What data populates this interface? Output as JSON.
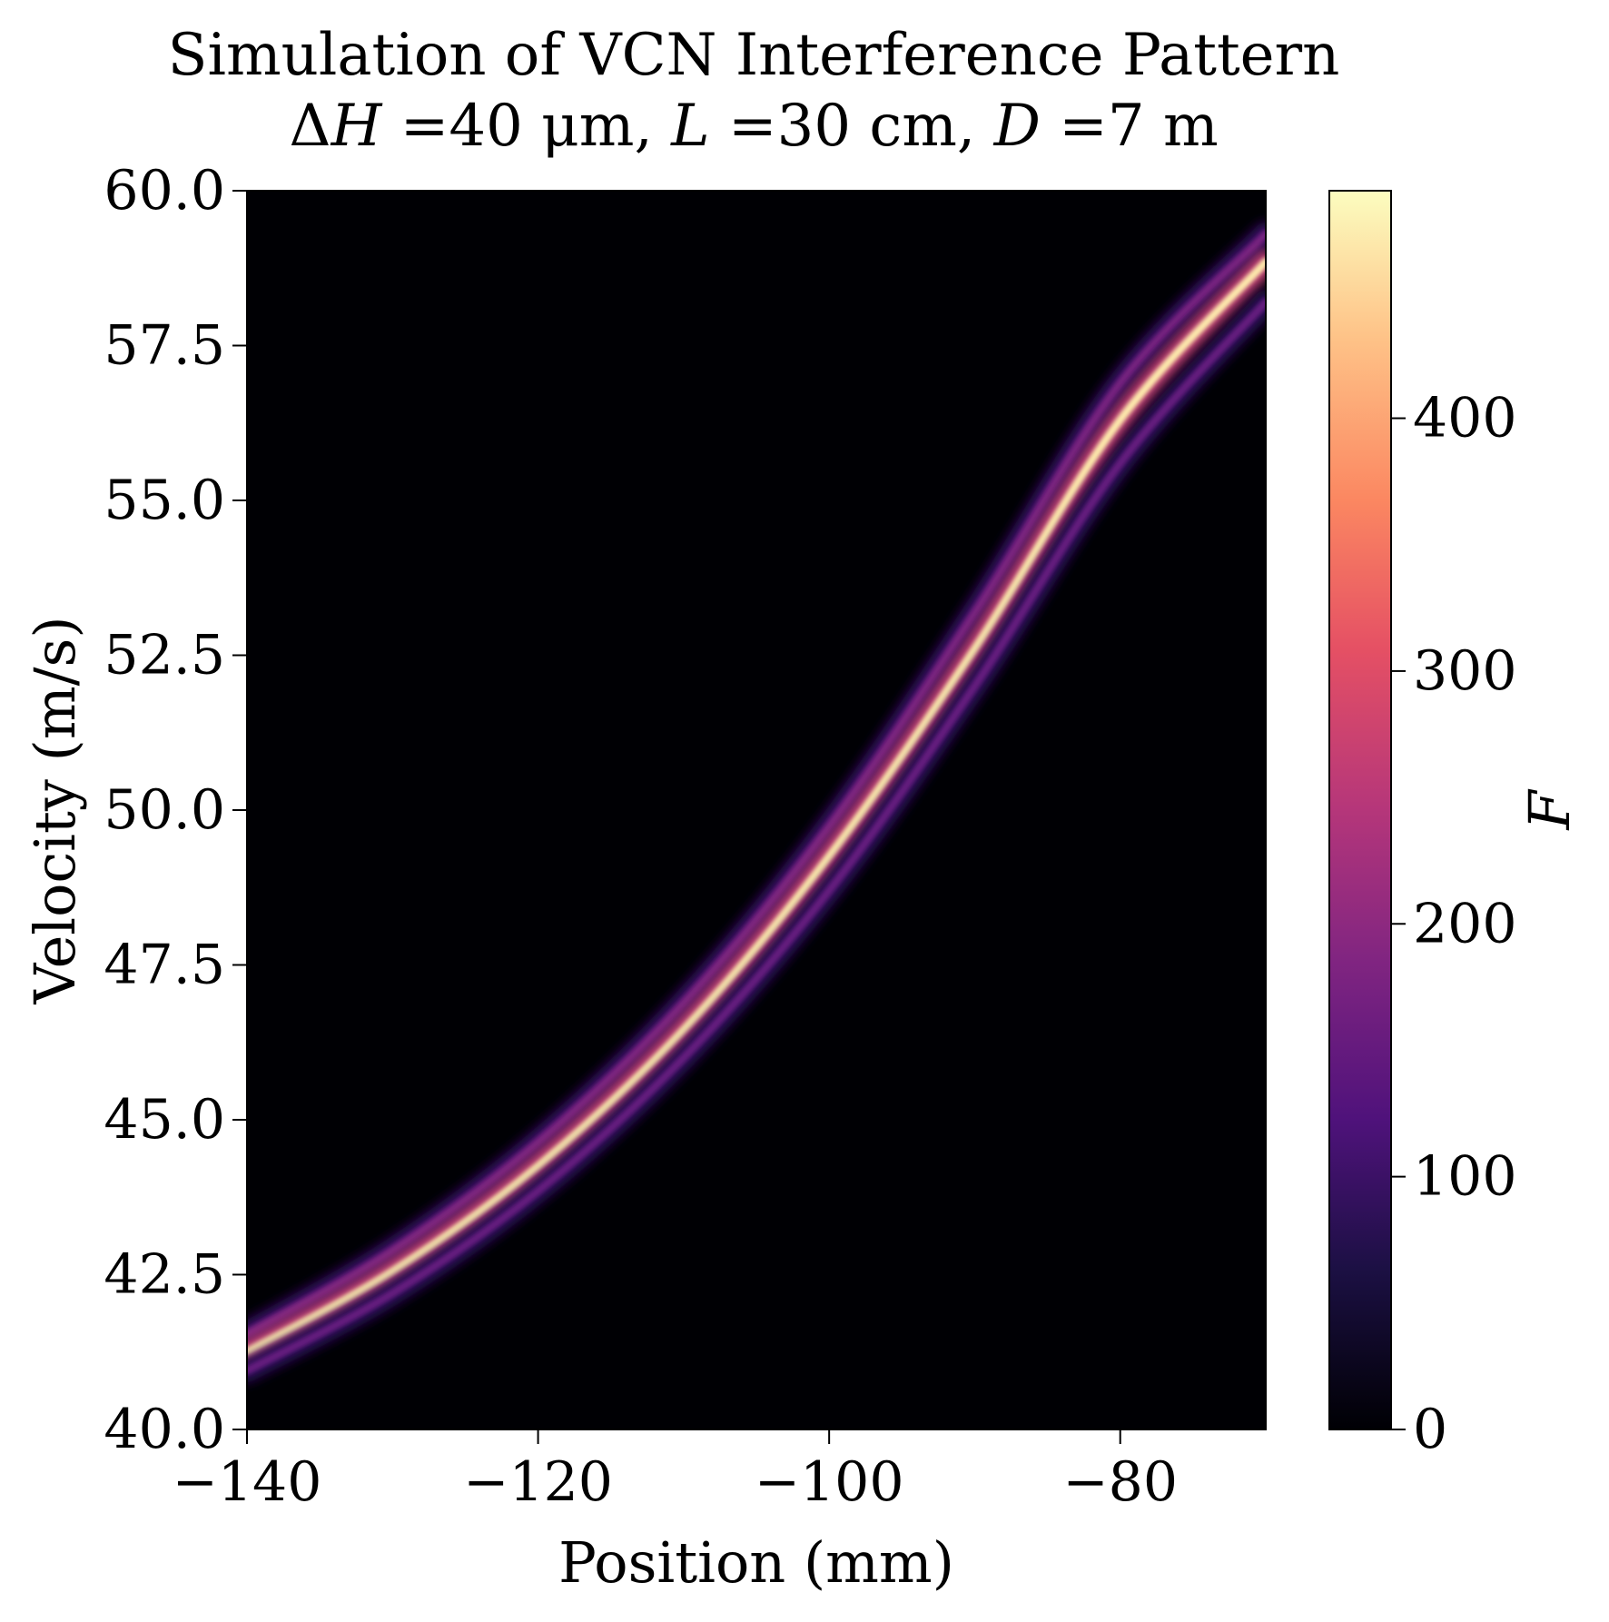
{
  "chart_data": {
    "type": "heatmap",
    "title": "Simulation of VCN Interference Pattern",
    "subtitle_parts": {
      "delta": "Δ",
      "h_var": "H",
      "h_val": " =40 μm, ",
      "l_var": "L",
      "l_val": " =30 cm, ",
      "d_var": "D",
      "d_val": " =7 m"
    },
    "xlabel": "Position (mm)",
    "ylabel": "Velocity (m/s)",
    "colorbar_label": "F",
    "colormap": "magma",
    "xlim": [
      -140,
      -70
    ],
    "ylim": [
      40.0,
      60.0
    ],
    "xticks": [
      {
        "value": -140,
        "label": "−140"
      },
      {
        "value": -120,
        "label": "−120"
      },
      {
        "value": -100,
        "label": "−100"
      },
      {
        "value": -80,
        "label": "−80"
      }
    ],
    "yticks": [
      {
        "value": 40.0,
        "label": "40.0"
      },
      {
        "value": 42.5,
        "label": "42.5"
      },
      {
        "value": 45.0,
        "label": "45.0"
      },
      {
        "value": 47.5,
        "label": "47.5"
      },
      {
        "value": 50.0,
        "label": "50.0"
      },
      {
        "value": 52.5,
        "label": "52.5"
      },
      {
        "value": 55.0,
        "label": "55.0"
      },
      {
        "value": 57.5,
        "label": "57.5"
      },
      {
        "value": 60.0,
        "label": "60.0"
      }
    ],
    "colorbar_range": [
      0,
      490
    ],
    "colorbar_ticks": [
      {
        "value": 0,
        "label": "0"
      },
      {
        "value": 100,
        "label": "100"
      },
      {
        "value": 200,
        "label": "200"
      },
      {
        "value": 300,
        "label": "300"
      },
      {
        "value": 400,
        "label": "400"
      }
    ],
    "fringes": [
      {
        "name": "upper-fringe",
        "points": [
          [
            -140,
            41.55
          ],
          [
            -130,
            42.9
          ],
          [
            -120,
            44.65
          ],
          [
            -110,
            46.9
          ],
          [
            -100,
            49.75
          ],
          [
            -90,
            53.2
          ],
          [
            -80,
            56.9
          ],
          [
            -70,
            59.3
          ]
        ],
        "peak": 170
      },
      {
        "name": "central-fringe",
        "points": [
          [
            -140,
            41.25
          ],
          [
            -130,
            42.55
          ],
          [
            -120,
            44.25
          ],
          [
            -110,
            46.45
          ],
          [
            -100,
            49.25
          ],
          [
            -90,
            52.6
          ],
          [
            -80,
            56.3
          ],
          [
            -70,
            58.85
          ]
        ],
        "peak": 470
      },
      {
        "name": "lower-fringe",
        "points": [
          [
            -140,
            40.95
          ],
          [
            -130,
            42.2
          ],
          [
            -120,
            43.85
          ],
          [
            -110,
            46.0
          ],
          [
            -100,
            48.7
          ],
          [
            -90,
            52.0
          ],
          [
            -80,
            55.6
          ],
          [
            -70,
            58.2
          ]
        ],
        "peak": 150
      }
    ]
  }
}
